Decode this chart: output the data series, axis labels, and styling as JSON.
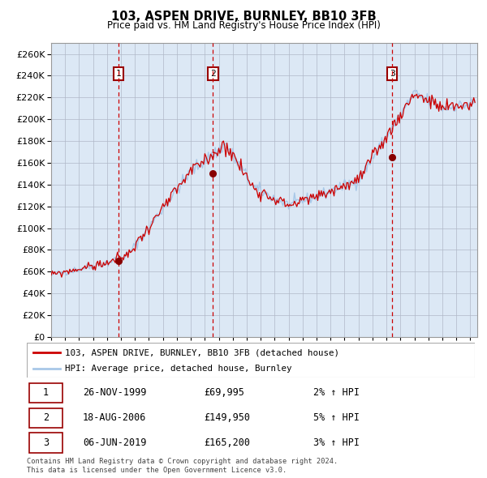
{
  "title": "103, ASPEN DRIVE, BURNLEY, BB10 3FB",
  "subtitle": "Price paid vs. HM Land Registry's House Price Index (HPI)",
  "sale_dates": [
    "26-NOV-1999",
    "18-AUG-2006",
    "06-JUN-2019"
  ],
  "sale_prices": [
    69995,
    149950,
    165200
  ],
  "sale_labels": [
    "1",
    "2",
    "3"
  ],
  "legend_line1": "103, ASPEN DRIVE, BURNLEY, BB10 3FB (detached house)",
  "legend_line2": "HPI: Average price, detached house, Burnley",
  "table_rows": [
    [
      "1",
      "26-NOV-1999",
      "£69,995",
      "2% ↑ HPI"
    ],
    [
      "2",
      "18-AUG-2006",
      "£149,950",
      "5% ↑ HPI"
    ],
    [
      "3",
      "06-JUN-2019",
      "£165,200",
      "3% ↑ HPI"
    ]
  ],
  "footer": "Contains HM Land Registry data © Crown copyright and database right 2024.\nThis data is licensed under the Open Government Licence v3.0.",
  "hpi_color": "#a8c8e8",
  "price_color": "#cc0000",
  "marker_color": "#880000",
  "vline_color": "#cc0000",
  "bg_color": "#dce8f5",
  "grid_color": "#b0b8c8",
  "ylabel_vals": [
    0,
    20000,
    40000,
    60000,
    80000,
    100000,
    120000,
    140000,
    160000,
    180000,
    200000,
    220000,
    240000,
    260000
  ],
  "ylim": [
    0,
    270000
  ],
  "xlim_start": 1995.0,
  "xlim_end": 2025.5
}
